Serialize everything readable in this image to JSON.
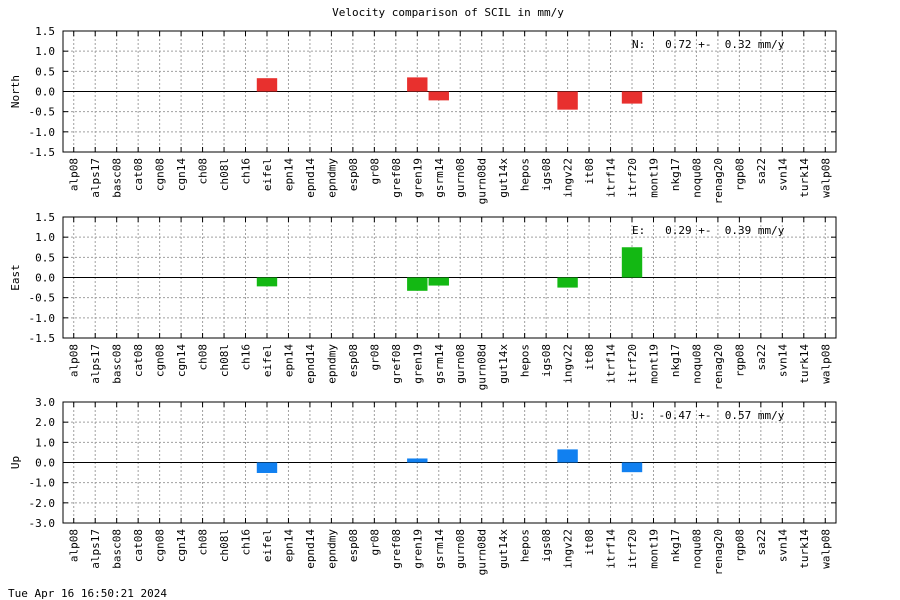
{
  "title": "Velocity comparison of SCIL in mm/y",
  "footer": "Tue Apr 16 16:50:21 2024",
  "chart_data": [
    {
      "type": "bar",
      "ylabel": "North",
      "annotation": "N:   0.72 +-  0.32 mm/y",
      "ylim": [
        -1.5,
        1.5
      ],
      "yticks": [
        "1.5",
        "1.0",
        "0.5",
        "0.0",
        "-0.5",
        "-1.0",
        "-1.5"
      ],
      "color": "#e8302e",
      "grid": true,
      "categories": [
        "alp08",
        "alps17",
        "basc08",
        "cat08",
        "cgn08",
        "cgn14",
        "ch08",
        "ch08l",
        "ch16",
        "eifel",
        "epn14",
        "epnd14",
        "epndmy",
        "esp08",
        "gr08",
        "gref08",
        "gren19",
        "gsrm14",
        "gurn08",
        "gurn08d",
        "gut14x",
        "hepos",
        "igs08",
        "ingv22",
        "it08",
        "itrf14",
        "itrf20",
        "mont19",
        "nkg17",
        "noqu08",
        "renag20",
        "rgp08",
        "sa22",
        "svn14",
        "turk14",
        "walp08"
      ],
      "values": [
        null,
        null,
        null,
        null,
        null,
        null,
        null,
        null,
        null,
        0.33,
        null,
        null,
        null,
        null,
        null,
        null,
        0.35,
        -0.22,
        null,
        null,
        null,
        null,
        null,
        -0.45,
        null,
        null,
        -0.3,
        null,
        null,
        null,
        null,
        null,
        null,
        null,
        null,
        null
      ]
    },
    {
      "type": "bar",
      "ylabel": "East",
      "annotation": "E:   0.29 +-  0.39 mm/y",
      "ylim": [
        -1.5,
        1.5
      ],
      "yticks": [
        "1.5",
        "1.0",
        "0.5",
        "0.0",
        "-0.5",
        "-1.0",
        "-1.5"
      ],
      "color": "#13b813",
      "grid": true,
      "categories": [
        "alp08",
        "alps17",
        "basc08",
        "cat08",
        "cgn08",
        "cgn14",
        "ch08",
        "ch08l",
        "ch16",
        "eifel",
        "epn14",
        "epnd14",
        "epndmy",
        "esp08",
        "gr08",
        "gref08",
        "gren19",
        "gsrm14",
        "gurn08",
        "gurn08d",
        "gut14x",
        "hepos",
        "igs08",
        "ingv22",
        "it08",
        "itrf14",
        "itrf20",
        "mont19",
        "nkg17",
        "noqu08",
        "renag20",
        "rgp08",
        "sa22",
        "svn14",
        "turk14",
        "walp08"
      ],
      "values": [
        null,
        null,
        null,
        null,
        null,
        null,
        null,
        null,
        null,
        -0.22,
        null,
        null,
        null,
        null,
        null,
        null,
        -0.33,
        -0.2,
        null,
        null,
        null,
        null,
        null,
        -0.25,
        null,
        null,
        0.75,
        null,
        null,
        null,
        null,
        null,
        null,
        null,
        null,
        null
      ]
    },
    {
      "type": "bar",
      "ylabel": "Up",
      "annotation": "U:  -0.47 +-  0.57 mm/y",
      "ylim": [
        -3.0,
        3.0
      ],
      "yticks": [
        "3.0",
        "2.0",
        "1.0",
        "0.0",
        "-1.0",
        "-2.0",
        "-3.0"
      ],
      "color": "#1180f0",
      "grid": true,
      "categories": [
        "alp08",
        "alps17",
        "basc08",
        "cat08",
        "cgn08",
        "cgn14",
        "ch08",
        "ch08l",
        "ch16",
        "eifel",
        "epn14",
        "epnd14",
        "epndmy",
        "esp08",
        "gr08",
        "gref08",
        "gren19",
        "gsrm14",
        "gurn08",
        "gurn08d",
        "gut14x",
        "hepos",
        "igs08",
        "ingv22",
        "it08",
        "itrf14",
        "itrf20",
        "mont19",
        "nkg17",
        "noqu08",
        "renag20",
        "rgp08",
        "sa22",
        "svn14",
        "turk14",
        "walp08"
      ],
      "values": [
        null,
        null,
        null,
        null,
        null,
        null,
        null,
        null,
        null,
        -0.52,
        null,
        null,
        null,
        null,
        null,
        null,
        0.2,
        null,
        null,
        null,
        null,
        null,
        null,
        0.65,
        null,
        null,
        -0.48,
        null,
        null,
        null,
        null,
        null,
        null,
        null,
        null,
        null
      ]
    }
  ]
}
